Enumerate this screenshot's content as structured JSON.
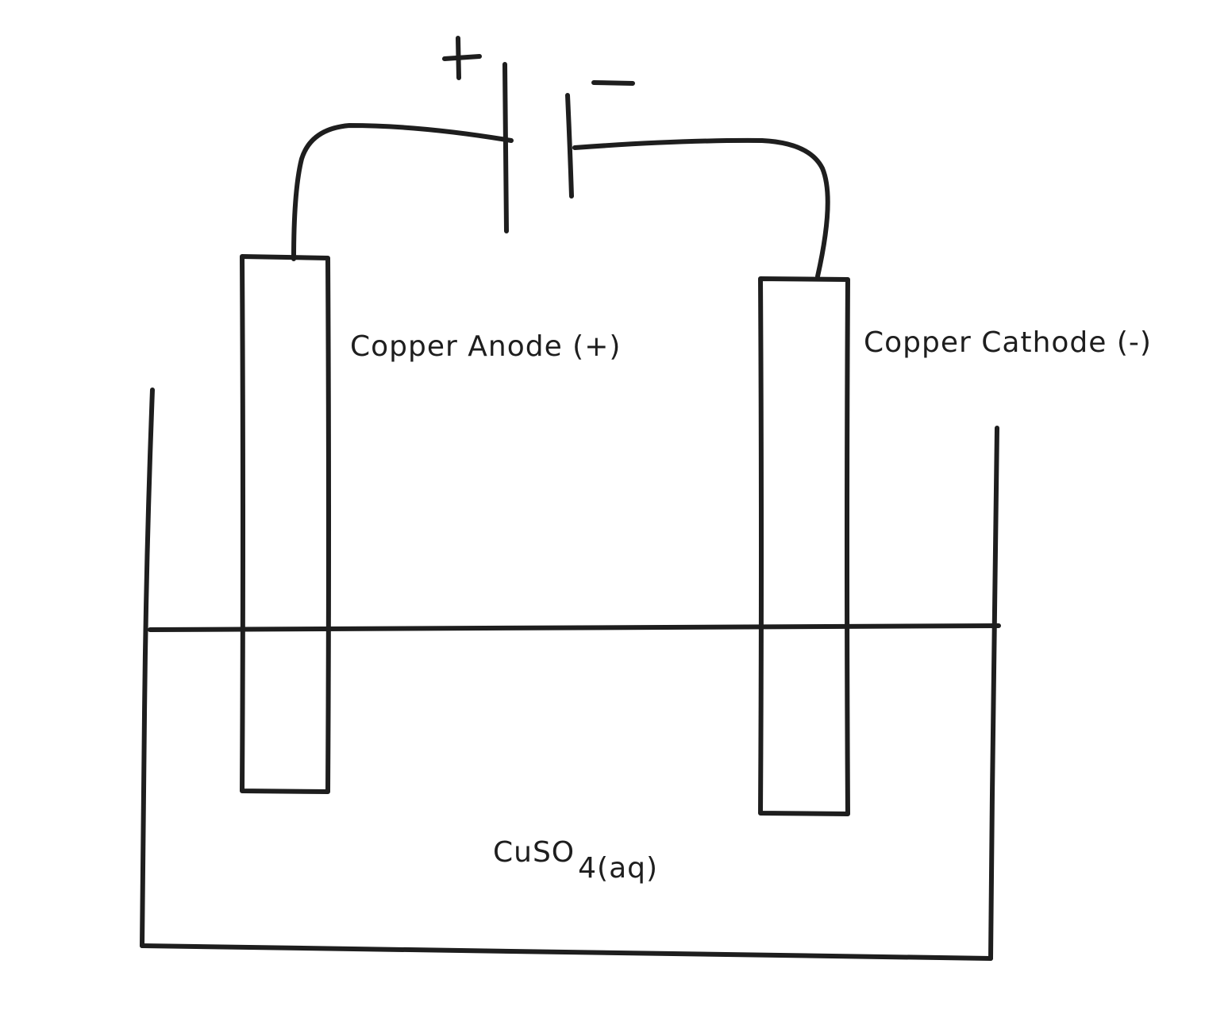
{
  "colors": {
    "ink": "#1e1e1e",
    "background": "#ffffff"
  },
  "battery": {
    "positive_symbol": "+",
    "negative_symbol": "−"
  },
  "labels": {
    "anode": "Copper Anode (+)",
    "cathode": "Copper Cathode (-)",
    "electrolyte_formula": "CuSO",
    "electrolyte_subscript": "4(aq)"
  }
}
